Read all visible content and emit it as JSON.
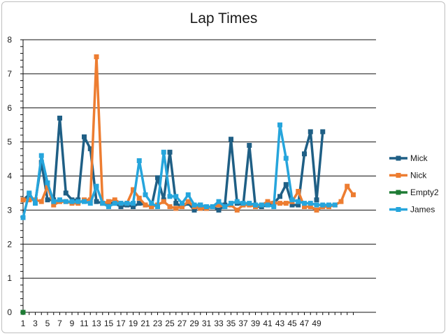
{
  "chart_data": {
    "type": "line",
    "title": "Lap Times",
    "xlabel": "",
    "ylabel": "",
    "ylim": [
      0,
      8
    ],
    "yticks": [
      0,
      1,
      2,
      3,
      4,
      5,
      6,
      7,
      8
    ],
    "xrange": [
      1,
      55
    ],
    "xticks": [
      1,
      3,
      5,
      7,
      9,
      11,
      13,
      15,
      17,
      19,
      21,
      23,
      25,
      27,
      29,
      31,
      33,
      35,
      37,
      39,
      41,
      43,
      45,
      47,
      49
    ],
    "grid": "horizontal",
    "legend": "right",
    "series": [
      {
        "name": "Mick",
        "color": "#1f5f85",
        "x": [
          1,
          2,
          3,
          4,
          5,
          6,
          7,
          8,
          9,
          10,
          11,
          12,
          13,
          14,
          15,
          16,
          17,
          18,
          19,
          20,
          21,
          22,
          23,
          24,
          25,
          26,
          27,
          28,
          29,
          30,
          31,
          32,
          33,
          34,
          35,
          36,
          37,
          38,
          39,
          40,
          41,
          42,
          43,
          44,
          45,
          46,
          47,
          48,
          49,
          50
        ],
        "values": [
          3.3,
          3.45,
          3.25,
          4.4,
          3.3,
          3.3,
          5.7,
          3.5,
          3.3,
          3.3,
          5.15,
          4.8,
          3.25,
          3.2,
          3.2,
          3.2,
          3.1,
          3.15,
          3.1,
          3.2,
          3.15,
          3.1,
          3.95,
          3.3,
          4.7,
          3.2,
          3.1,
          3.2,
          3.0,
          3.15,
          3.05,
          3.1,
          3.0,
          3.15,
          5.08,
          3.2,
          3.15,
          4.9,
          3.1,
          3.1,
          3.15,
          3.2,
          3.4,
          3.75,
          3.15,
          3.15,
          4.65,
          5.3,
          3.3,
          5.3
        ]
      },
      {
        "name": "Nick",
        "color": "#ed7d31",
        "x": [
          1,
          2,
          3,
          4,
          5,
          6,
          7,
          8,
          9,
          10,
          11,
          12,
          13,
          14,
          15,
          16,
          17,
          18,
          19,
          20,
          21,
          22,
          23,
          24,
          25,
          26,
          27,
          28,
          29,
          30,
          31,
          32,
          33,
          34,
          35,
          36,
          37,
          38,
          39,
          40,
          41,
          42,
          43,
          44,
          45,
          46,
          47,
          48,
          49,
          50,
          51,
          52,
          53,
          54,
          55
        ],
        "values": [
          3.3,
          3.3,
          3.3,
          3.25,
          3.7,
          3.15,
          3.25,
          3.25,
          3.2,
          3.2,
          3.3,
          3.3,
          7.5,
          3.2,
          3.25,
          3.3,
          3.2,
          3.2,
          3.6,
          3.35,
          3.15,
          3.1,
          3.15,
          3.25,
          3.1,
          3.05,
          3.1,
          3.25,
          3.1,
          3.05,
          3.05,
          3.1,
          3.15,
          3.1,
          3.15,
          3.0,
          3.15,
          3.15,
          3.1,
          3.15,
          3.25,
          3.2,
          3.2,
          3.2,
          3.25,
          3.55,
          3.1,
          3.1,
          3.0,
          3.1,
          3.1,
          3.15,
          3.25,
          3.7,
          3.45
        ]
      },
      {
        "name": "Empty2",
        "color": "#1e7b34",
        "x": [
          1
        ],
        "values": [
          0
        ]
      },
      {
        "name": "James",
        "color": "#26a5dc",
        "x": [
          1,
          2,
          3,
          4,
          5,
          6,
          7,
          8,
          9,
          10,
          11,
          12,
          13,
          14,
          15,
          16,
          17,
          18,
          19,
          20,
          21,
          22,
          23,
          24,
          25,
          26,
          27,
          28,
          29,
          30,
          31,
          32,
          33,
          34,
          35,
          36,
          37,
          38,
          39,
          40,
          41,
          42,
          43,
          44,
          45,
          46,
          47,
          48,
          49,
          50,
          51,
          52
        ],
        "values": [
          2.78,
          3.5,
          3.2,
          4.6,
          3.8,
          3.25,
          3.3,
          3.25,
          3.25,
          3.25,
          3.25,
          3.2,
          3.7,
          3.2,
          3.1,
          3.2,
          3.2,
          3.2,
          3.2,
          4.45,
          3.45,
          3.2,
          3.1,
          4.7,
          3.4,
          3.4,
          3.2,
          3.45,
          3.15,
          3.15,
          3.1,
          3.1,
          3.25,
          3.1,
          3.2,
          3.25,
          3.2,
          3.2,
          3.15,
          3.15,
          3.15,
          3.1,
          5.5,
          4.52,
          3.3,
          3.25,
          3.2,
          3.2,
          3.15,
          3.15,
          3.15,
          3.15
        ]
      }
    ]
  }
}
